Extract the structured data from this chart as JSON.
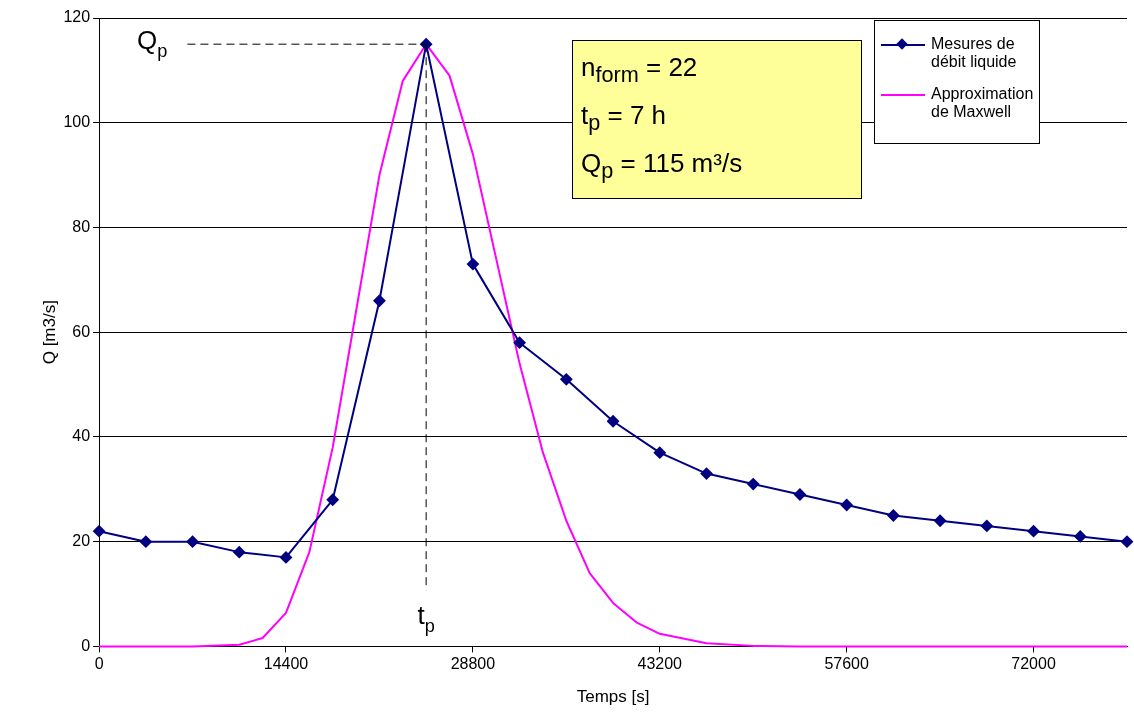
{
  "chart_data": {
    "type": "line",
    "xlabel": "Temps [s]",
    "ylabel": "Q [m3/s]",
    "xlim": [
      0,
      79200
    ],
    "xticks": [
      0,
      14400,
      28800,
      43200,
      57600,
      72000
    ],
    "ylim": [
      0,
      120
    ],
    "yticks": [
      0,
      20,
      40,
      60,
      80,
      100,
      120
    ],
    "grid": "y",
    "legend": "top right",
    "series": [
      {
        "name": "Mesures de débit liquide",
        "color": "#000080",
        "marker": "diamond",
        "x": [
          0,
          3600,
          7200,
          10800,
          14400,
          18000,
          21600,
          25200,
          28800,
          32400,
          36000,
          39600,
          43200,
          46800,
          50400,
          54000,
          57600,
          61200,
          64800,
          68400,
          72000,
          75600,
          79200
        ],
        "values": [
          22,
          20,
          20,
          18,
          17,
          28,
          66,
          115,
          73,
          58,
          51,
          43,
          37,
          33,
          31,
          29,
          27,
          25,
          24,
          23,
          22,
          21,
          20
        ]
      },
      {
        "name": "Approximation de Maxwell",
        "color": "#ff00ff",
        "marker": "none",
        "x": [
          0,
          7200,
          10800,
          12600,
          14400,
          16200,
          18000,
          19800,
          21600,
          23400,
          25200,
          27000,
          28800,
          30600,
          32400,
          34200,
          36000,
          37800,
          39600,
          41400,
          43200,
          46800,
          50400,
          54000,
          79200
        ],
        "values": [
          0,
          0,
          0.3,
          1.6,
          6.4,
          18,
          38,
          64,
          90,
          108,
          115,
          109,
          94,
          74,
          54,
          37,
          24,
          14,
          8.3,
          4.6,
          2.4,
          0.6,
          0.1,
          0,
          0
        ]
      }
    ],
    "ref_lines": [
      {
        "axis": "y",
        "value": 115,
        "label": "Q$_{p}$",
        "color": "#000000",
        "line_style": "dashed"
      },
      {
        "axis": "x",
        "value": 25200,
        "label": "t$_{p}$",
        "color": "#000000",
        "line_style": "dashed"
      }
    ],
    "annotations": [
      "n$_{form}$ = 22",
      "t$_{p}$ = 7 h",
      "Q$_{p}$ = 115 m³/s"
    ]
  }
}
